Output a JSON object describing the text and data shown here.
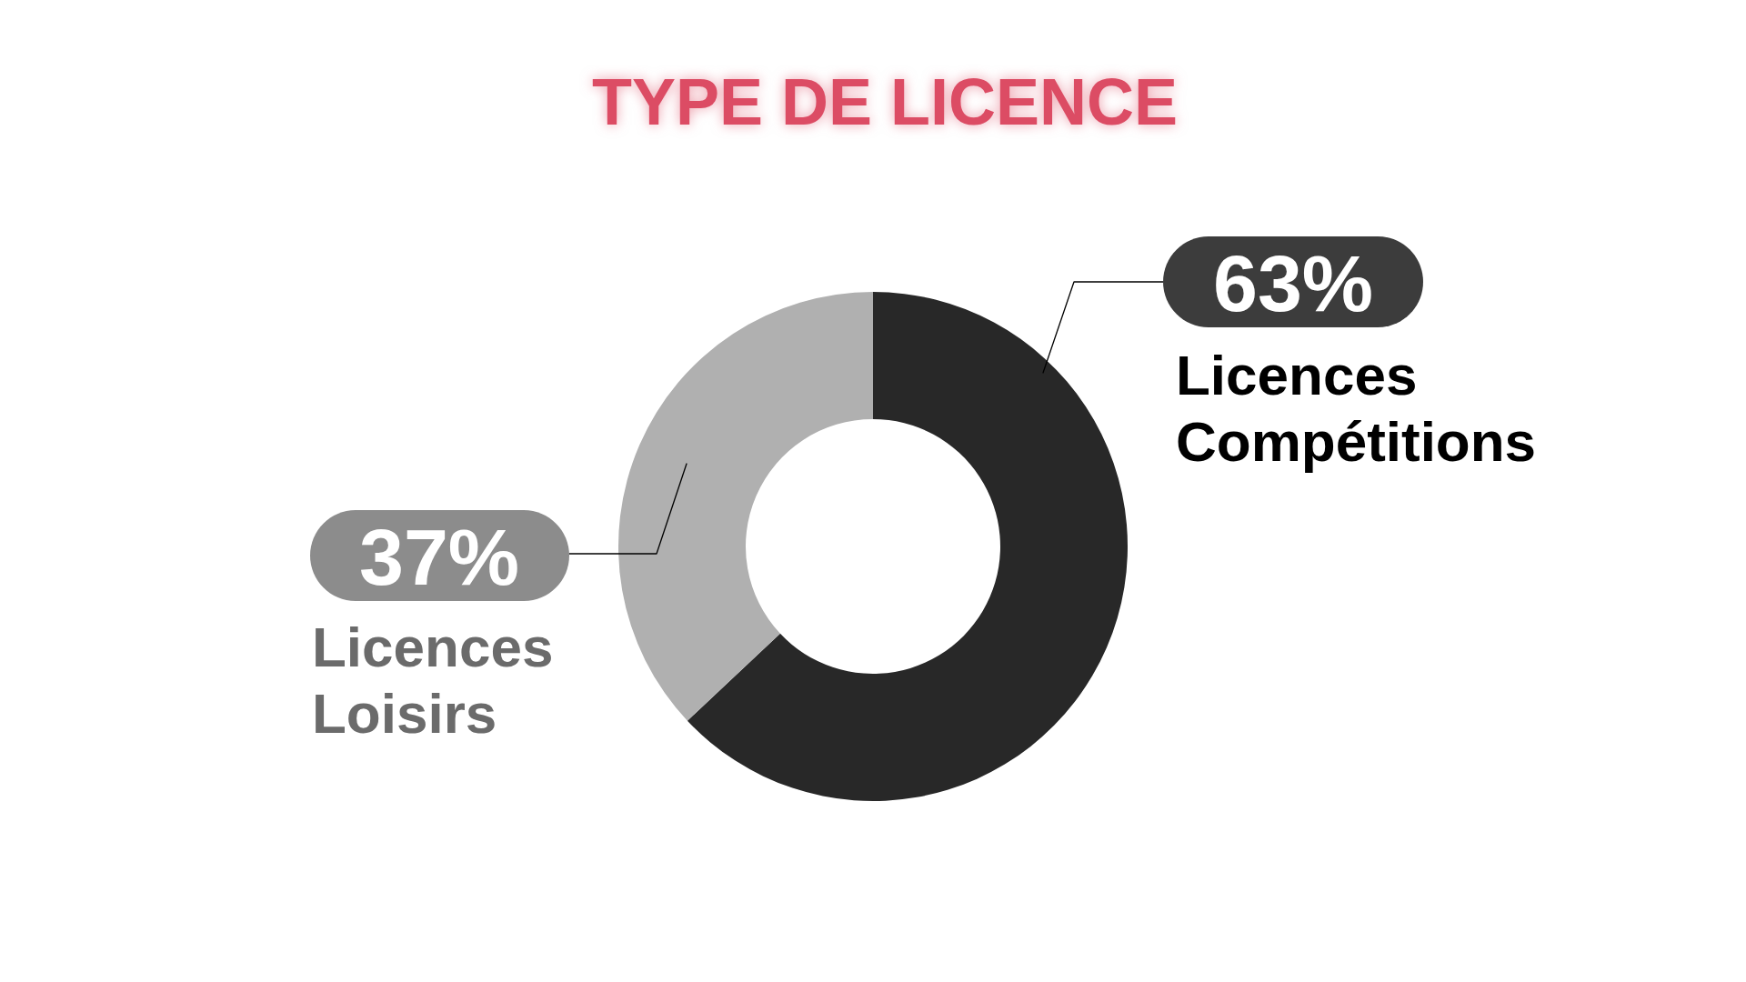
{
  "chart_data": {
    "type": "donut",
    "title": "TYPE DE LICENCE",
    "categories": [
      "Licences Compétitions",
      "Licences Loisirs"
    ],
    "values": [
      63,
      37
    ],
    "colors": [
      "#282828",
      "#b0b0b0"
    ],
    "value_labels": [
      "63%",
      "37%"
    ]
  }
}
